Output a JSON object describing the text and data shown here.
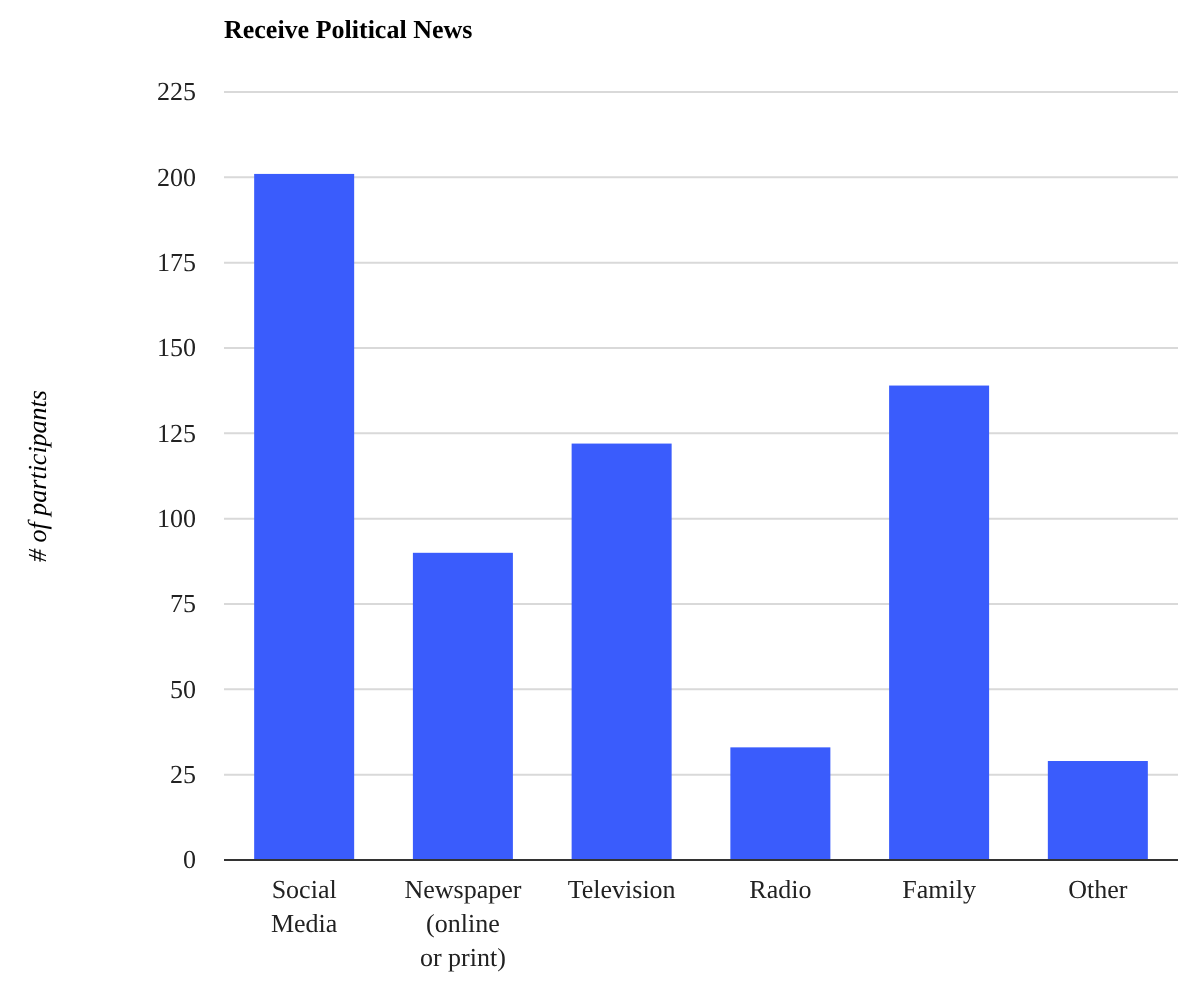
{
  "chart_data": {
    "type": "bar",
    "title": "Receive Political News",
    "ylabel": "# of participants",
    "categories": [
      "Social Media",
      "Newspaper (online or print)",
      "Television",
      "Radio",
      "Family",
      "Other"
    ],
    "values": [
      201,
      90,
      122,
      33,
      139,
      29
    ],
    "color": "#3a5cfc",
    "ylim": [
      0,
      225
    ],
    "yticks": [
      0,
      25,
      50,
      75,
      100,
      125,
      150,
      175,
      200,
      225
    ],
    "grid": "y"
  }
}
